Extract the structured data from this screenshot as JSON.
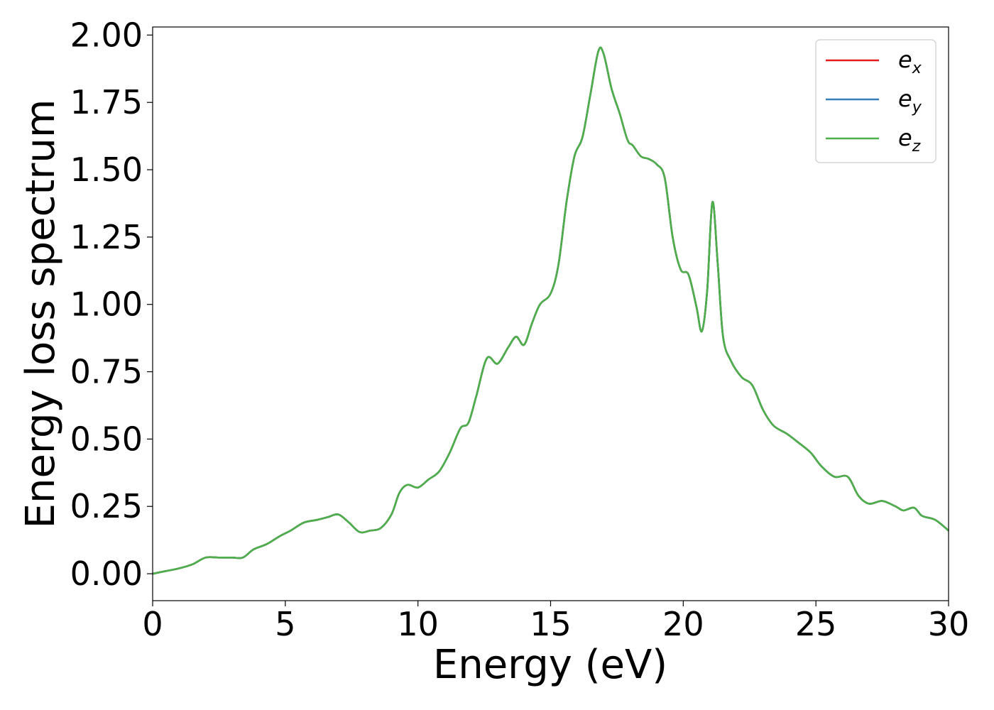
{
  "chart_data": {
    "type": "line",
    "xlabel": "Energy (eV)",
    "ylabel": "Energy loss spectrum",
    "xlim": [
      0,
      30
    ],
    "ylim": [
      -0.1,
      2.03
    ],
    "xticks": [
      0,
      5,
      10,
      15,
      20,
      25,
      30
    ],
    "yticks": [
      0.0,
      0.25,
      0.5,
      0.75,
      1.0,
      1.25,
      1.5,
      1.75,
      2.0
    ],
    "xtick_labels": [
      "0",
      "5",
      "10",
      "15",
      "20",
      "25",
      "30"
    ],
    "ytick_labels": [
      "0.00",
      "0.25",
      "0.50",
      "0.75",
      "1.00",
      "1.25",
      "1.50",
      "1.75",
      "2.00"
    ],
    "grid": false,
    "legend_position": "top-right",
    "x": [
      0,
      0.5,
      1.0,
      1.5,
      2.0,
      2.5,
      3.0,
      3.4,
      3.8,
      4.3,
      4.8,
      5.2,
      5.7,
      6.2,
      6.6,
      7.0,
      7.4,
      7.8,
      8.2,
      8.6,
      9.0,
      9.3,
      9.6,
      10.0,
      10.4,
      10.8,
      11.2,
      11.6,
      11.9,
      12.2,
      12.6,
      13.0,
      13.4,
      13.7,
      14.0,
      14.3,
      14.6,
      15.0,
      15.3,
      15.6,
      15.9,
      16.2,
      16.5,
      16.8,
      17.0,
      17.3,
      17.6,
      17.9,
      18.1,
      18.4,
      18.7,
      19.0,
      19.3,
      19.6,
      19.9,
      20.2,
      20.5,
      20.7,
      20.9,
      21.1,
      21.3,
      21.5,
      21.8,
      22.2,
      22.6,
      23.0,
      23.4,
      23.9,
      24.3,
      24.8,
      25.2,
      25.7,
      26.2,
      26.6,
      27.0,
      27.5,
      28.0,
      28.3,
      28.7,
      29.0,
      29.5,
      30.0
    ],
    "series": [
      {
        "name": "e_x",
        "color": "#e41a1c",
        "values": [
          0.0,
          0.01,
          0.02,
          0.035,
          0.06,
          0.06,
          0.06,
          0.06,
          0.09,
          0.11,
          0.14,
          0.16,
          0.19,
          0.2,
          0.21,
          0.22,
          0.19,
          0.155,
          0.16,
          0.17,
          0.22,
          0.3,
          0.33,
          0.32,
          0.35,
          0.38,
          0.45,
          0.54,
          0.56,
          0.66,
          0.8,
          0.78,
          0.84,
          0.88,
          0.85,
          0.93,
          1.0,
          1.04,
          1.15,
          1.38,
          1.55,
          1.62,
          1.78,
          1.94,
          1.93,
          1.8,
          1.71,
          1.61,
          1.59,
          1.55,
          1.54,
          1.52,
          1.47,
          1.25,
          1.13,
          1.11,
          0.99,
          0.9,
          1.05,
          1.38,
          1.15,
          0.88,
          0.79,
          0.73,
          0.7,
          0.61,
          0.55,
          0.52,
          0.49,
          0.45,
          0.4,
          0.36,
          0.36,
          0.29,
          0.26,
          0.27,
          0.25,
          0.235,
          0.245,
          0.215,
          0.2,
          0.16
        ]
      },
      {
        "name": "e_y",
        "color": "#377eb8",
        "values": [
          0.0,
          0.01,
          0.02,
          0.035,
          0.06,
          0.06,
          0.06,
          0.06,
          0.09,
          0.11,
          0.14,
          0.16,
          0.19,
          0.2,
          0.21,
          0.22,
          0.19,
          0.155,
          0.16,
          0.17,
          0.22,
          0.3,
          0.33,
          0.32,
          0.35,
          0.38,
          0.45,
          0.54,
          0.56,
          0.66,
          0.8,
          0.78,
          0.84,
          0.88,
          0.85,
          0.93,
          1.0,
          1.04,
          1.15,
          1.38,
          1.55,
          1.62,
          1.78,
          1.94,
          1.93,
          1.8,
          1.71,
          1.61,
          1.59,
          1.55,
          1.54,
          1.52,
          1.47,
          1.25,
          1.13,
          1.11,
          0.99,
          0.9,
          1.05,
          1.38,
          1.15,
          0.88,
          0.79,
          0.73,
          0.7,
          0.61,
          0.55,
          0.52,
          0.49,
          0.45,
          0.4,
          0.36,
          0.36,
          0.29,
          0.26,
          0.27,
          0.25,
          0.235,
          0.245,
          0.215,
          0.2,
          0.16
        ]
      },
      {
        "name": "e_z",
        "color": "#4daf4a",
        "values": [
          0.0,
          0.01,
          0.02,
          0.035,
          0.06,
          0.06,
          0.06,
          0.06,
          0.09,
          0.11,
          0.14,
          0.16,
          0.19,
          0.2,
          0.21,
          0.22,
          0.19,
          0.155,
          0.16,
          0.17,
          0.22,
          0.3,
          0.33,
          0.32,
          0.35,
          0.38,
          0.45,
          0.54,
          0.56,
          0.66,
          0.8,
          0.78,
          0.84,
          0.88,
          0.85,
          0.93,
          1.0,
          1.04,
          1.15,
          1.38,
          1.55,
          1.62,
          1.78,
          1.94,
          1.93,
          1.8,
          1.71,
          1.61,
          1.59,
          1.55,
          1.54,
          1.52,
          1.47,
          1.25,
          1.13,
          1.11,
          0.99,
          0.9,
          1.05,
          1.38,
          1.15,
          0.88,
          0.79,
          0.73,
          0.7,
          0.61,
          0.55,
          0.52,
          0.49,
          0.45,
          0.4,
          0.36,
          0.36,
          0.29,
          0.26,
          0.27,
          0.25,
          0.235,
          0.245,
          0.215,
          0.2,
          0.16
        ]
      }
    ],
    "legend": [
      {
        "base": "e",
        "sub": "x",
        "color": "#e41a1c"
      },
      {
        "base": "e",
        "sub": "y",
        "color": "#377eb8"
      },
      {
        "base": "e",
        "sub": "z",
        "color": "#4daf4a"
      }
    ]
  }
}
